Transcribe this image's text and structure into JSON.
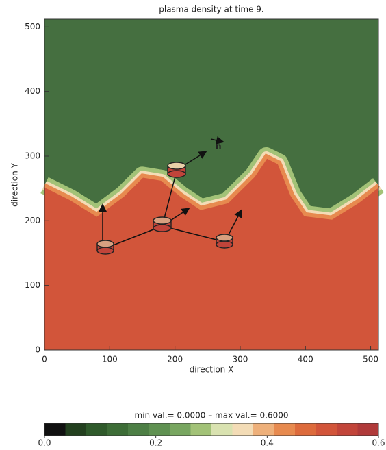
{
  "chart_data": {
    "type": "density-map",
    "title": "plasma density at time 9.",
    "x_label": "direction X",
    "y_label": "direction Y",
    "xlim": [
      0,
      512
    ],
    "ylim": [
      0,
      512
    ],
    "xticks": [
      0,
      100,
      200,
      300,
      400,
      500
    ],
    "yticks": [
      0,
      100,
      200,
      300,
      400,
      500
    ],
    "upper_color": "#456f40",
    "lower_color": "#d2553a",
    "interface": {
      "x": [
        0,
        40,
        80,
        120,
        150,
        180,
        210,
        240,
        280,
        320,
        340,
        360,
        380,
        400,
        440,
        480,
        512
      ],
      "y": [
        255,
        235,
        210,
        240,
        270,
        265,
        240,
        220,
        230,
        270,
        300,
        290,
        240,
        210,
        205,
        230,
        255
      ]
    },
    "vector_label": "n",
    "colorbar": {
      "label": "min val.= 0.0000 – max val.= 0.6000",
      "lim": [
        0,
        0.6
      ],
      "ticks": [
        {
          "value": 0,
          "label": "0.0"
        },
        0.2,
        0.4,
        0.6
      ],
      "colors": [
        "#111111",
        "#23401f",
        "#2f5a2b",
        "#3d6d37",
        "#4d7f45",
        "#5f9151",
        "#78a660",
        "#a2c277",
        "#d9e2b0",
        "#f3dcb6",
        "#eeb07a",
        "#e78a4f",
        "#dd6b3c",
        "#d2553a",
        "#c2453a",
        "#b03a3a"
      ]
    }
  }
}
